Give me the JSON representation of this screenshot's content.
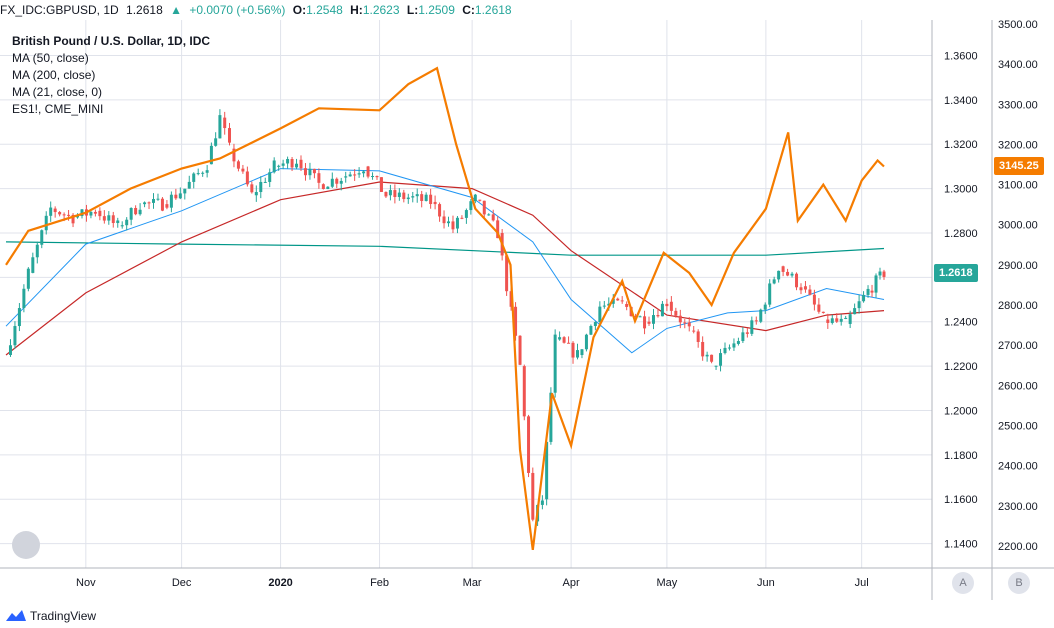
{
  "header": {
    "symbol": "FX_IDC:GBPUSD, 1D",
    "last": "1.2618",
    "change_arrow": "▲",
    "change": "+0.0070 (+0.56%)",
    "open_label": "O:",
    "open": "1.2548",
    "high_label": "H:",
    "high": "1.2623",
    "low_label": "L:",
    "low": "1.2509",
    "close_label": "C:",
    "close": "1.2618"
  },
  "legend": [
    {
      "text": "British Pound / U.S. Dollar, 1D, IDC",
      "bold": true
    },
    {
      "text": "MA (50, close)"
    },
    {
      "text": "MA (200, close)"
    },
    {
      "text": "MA (21, close, 0)"
    },
    {
      "text": "ES1!, CME_MINI"
    }
  ],
  "footer": {
    "brand": "TradingView",
    "btn_a": "A",
    "btn_b": "B"
  },
  "colors": {
    "up": "#26a69a",
    "down": "#ef5350",
    "ma50": "#2196f3",
    "ma200": "#c62828",
    "ma21": "#009688",
    "es": "#f57c00",
    "grid": "#e0e3eb"
  },
  "chart_data": {
    "type": "line",
    "x_ticks": [
      "Nov",
      "Dec",
      "2020",
      "Feb",
      "Mar",
      "Apr",
      "May",
      "Jun",
      "Jul"
    ],
    "left_axis": {
      "label": "GBPUSD",
      "ticks": [
        "1.3600",
        "1.3400",
        "1.3200",
        "1.3000",
        "1.2800",
        "1.2600",
        "1.2400",
        "1.2200",
        "1.2000",
        "1.1800",
        "1.1600",
        "1.1400"
      ],
      "ylim": [
        1.129,
        1.376
      ]
    },
    "right_axis": {
      "label": "ES1!",
      "ticks": [
        "3500.00",
        "3400.00",
        "3300.00",
        "3200.00",
        "3100.00",
        "3000.00",
        "2900.00",
        "2800.00",
        "2700.00",
        "2600.00",
        "2500.00",
        "2400.00",
        "2300.00",
        "2200.00"
      ],
      "ylim": [
        2145,
        3510
      ]
    },
    "last_price_badge": "1.2618",
    "es_price_badge": "3145.25",
    "series": [
      {
        "name": "British Pound / U.S. Dollar, 1D, IDC",
        "type": "candlestick",
        "points": [
          {
            "t": "Oct 7",
            "c": 1.225
          },
          {
            "t": "Oct 14",
            "c": 1.262
          },
          {
            "t": "Oct 21",
            "c": 1.291
          },
          {
            "t": "Oct 28",
            "c": 1.287
          },
          {
            "t": "Nov 4",
            "c": 1.29
          },
          {
            "t": "Nov 11",
            "c": 1.283
          },
          {
            "t": "Nov 18",
            "c": 1.293
          },
          {
            "t": "Nov 25",
            "c": 1.293
          },
          {
            "t": "Dec 2",
            "c": 1.3
          },
          {
            "t": "Dec 9",
            "c": 1.311
          },
          {
            "t": "Dec 13",
            "c": 1.332
          },
          {
            "t": "Dec 16",
            "c": 1.318
          },
          {
            "t": "Dec 23",
            "c": 1.297
          },
          {
            "t": "Dec 30",
            "c": 1.31
          },
          {
            "t": "Jan 6",
            "c": 1.313
          },
          {
            "t": "Jan 13",
            "c": 1.302
          },
          {
            "t": "Jan 20",
            "c": 1.305
          },
          {
            "t": "Jan 27",
            "c": 1.31
          },
          {
            "t": "Feb 3",
            "c": 1.297
          },
          {
            "t": "Feb 10",
            "c": 1.296
          },
          {
            "t": "Feb 17",
            "c": 1.294
          },
          {
            "t": "Feb 24",
            "c": 1.282
          },
          {
            "t": "Mar 2",
            "c": 1.295
          },
          {
            "t": "Mar 9",
            "c": 1.28
          },
          {
            "t": "Mar 16",
            "c": 1.22
          },
          {
            "t": "Mar 20",
            "c": 1.15
          },
          {
            "t": "Mar 23",
            "c": 1.16
          },
          {
            "t": "Mar 27",
            "c": 1.232
          },
          {
            "t": "Apr 3",
            "c": 1.225
          },
          {
            "t": "Apr 10",
            "c": 1.247
          },
          {
            "t": "Apr 17",
            "c": 1.248
          },
          {
            "t": "Apr 24",
            "c": 1.24
          },
          {
            "t": "May 1",
            "c": 1.249
          },
          {
            "t": "May 8",
            "c": 1.236
          },
          {
            "t": "May 15",
            "c": 1.22
          },
          {
            "t": "May 22",
            "c": 1.23
          },
          {
            "t": "May 29",
            "c": 1.24
          },
          {
            "t": "Jun 5",
            "c": 1.265
          },
          {
            "t": "Jun 12",
            "c": 1.256
          },
          {
            "t": "Jun 19",
            "c": 1.241
          },
          {
            "t": "Jun 26",
            "c": 1.239
          },
          {
            "t": "Jul 3",
            "c": 1.254
          },
          {
            "t": "Jul 8",
            "c": 1.262
          }
        ]
      },
      {
        "name": "MA (50, close)",
        "values": [
          {
            "t": "Oct 7",
            "v": 1.238
          },
          {
            "t": "Nov 1",
            "v": 1.275
          },
          {
            "t": "Dec 1",
            "v": 1.29
          },
          {
            "t": "Jan 1",
            "v": 1.309
          },
          {
            "t": "Feb 1",
            "v": 1.308
          },
          {
            "t": "Mar 1",
            "v": 1.296
          },
          {
            "t": "Mar 20",
            "v": 1.276
          },
          {
            "t": "Apr 1",
            "v": 1.25
          },
          {
            "t": "Apr 20",
            "v": 1.226
          },
          {
            "t": "May 1",
            "v": 1.237
          },
          {
            "t": "May 20",
            "v": 1.244
          },
          {
            "t": "Jun 1",
            "v": 1.245
          },
          {
            "t": "Jun 20",
            "v": 1.255
          },
          {
            "t": "Jul 8",
            "v": 1.25
          }
        ]
      },
      {
        "name": "MA (200, close)",
        "values": [
          {
            "t": "Oct 7",
            "v": 1.225
          },
          {
            "t": "Nov 1",
            "v": 1.253
          },
          {
            "t": "Dec 1",
            "v": 1.276
          },
          {
            "t": "Jan 1",
            "v": 1.295
          },
          {
            "t": "Feb 1",
            "v": 1.303
          },
          {
            "t": "Mar 1",
            "v": 1.3
          },
          {
            "t": "Mar 20",
            "v": 1.288
          },
          {
            "t": "Apr 1",
            "v": 1.272
          },
          {
            "t": "May 1",
            "v": 1.243
          },
          {
            "t": "Jun 1",
            "v": 1.236
          },
          {
            "t": "Jun 20",
            "v": 1.243
          },
          {
            "t": "Jul 8",
            "v": 1.245
          }
        ]
      },
      {
        "name": "MA (21, close, 0)",
        "values": [
          {
            "t": "Oct 7",
            "v": 1.276
          },
          {
            "t": "Dec 1",
            "v": 1.275
          },
          {
            "t": "Feb 1",
            "v": 1.274
          },
          {
            "t": "Apr 1",
            "v": 1.27
          },
          {
            "t": "Jun 1",
            "v": 1.27
          },
          {
            "t": "Jul 8",
            "v": 1.273
          }
        ]
      },
      {
        "name": "ES1!, CME_MINI",
        "values": [
          {
            "t": "Oct 7",
            "v": 2900
          },
          {
            "t": "Oct 14",
            "v": 2985
          },
          {
            "t": "Nov 1",
            "v": 3030
          },
          {
            "t": "Nov 15",
            "v": 3090
          },
          {
            "t": "Dec 1",
            "v": 3140
          },
          {
            "t": "Dec 13",
            "v": 3165
          },
          {
            "t": "Jan 1",
            "v": 3240
          },
          {
            "t": "Jan 13",
            "v": 3290
          },
          {
            "t": "Feb 1",
            "v": 3285
          },
          {
            "t": "Feb 10",
            "v": 3350
          },
          {
            "t": "Feb 19",
            "v": 3390
          },
          {
            "t": "Feb 25",
            "v": 3200
          },
          {
            "t": "Mar 2",
            "v": 3040
          },
          {
            "t": "Mar 9",
            "v": 2980
          },
          {
            "t": "Mar 13",
            "v": 2900
          },
          {
            "t": "Mar 16",
            "v": 2440
          },
          {
            "t": "Mar 20",
            "v": 2190
          },
          {
            "t": "Mar 26",
            "v": 2580
          },
          {
            "t": "Apr 1",
            "v": 2450
          },
          {
            "t": "Apr 8",
            "v": 2720
          },
          {
            "t": "Apr 17",
            "v": 2860
          },
          {
            "t": "Apr 21",
            "v": 2760
          },
          {
            "t": "Apr 30",
            "v": 2930
          },
          {
            "t": "May 8",
            "v": 2880
          },
          {
            "t": "May 15",
            "v": 2800
          },
          {
            "t": "May 22",
            "v": 2930
          },
          {
            "t": "Jun 1",
            "v": 3040
          },
          {
            "t": "Jun 8",
            "v": 3230
          },
          {
            "t": "Jun 11",
            "v": 3010
          },
          {
            "t": "Jun 19",
            "v": 3100
          },
          {
            "t": "Jun 26",
            "v": 3010
          },
          {
            "t": "Jul 1",
            "v": 3110
          },
          {
            "t": "Jul 6",
            "v": 3160
          },
          {
            "t": "Jul 8",
            "v": 3145
          }
        ]
      }
    ]
  }
}
